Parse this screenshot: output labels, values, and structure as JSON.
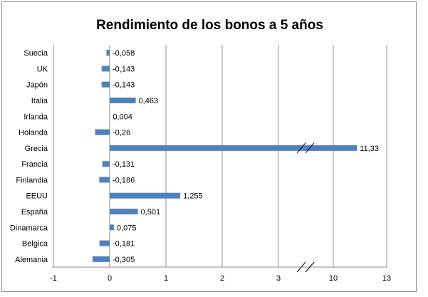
{
  "chart_data": {
    "type": "bar",
    "orientation": "horizontal",
    "title": "Rendimiento de los bonos a 5 años",
    "categories": [
      "Suecia",
      "UK",
      "Japón",
      "Italia",
      "Irlanda",
      "Holanda",
      "Grecia",
      "Francia",
      "Finlandia",
      "EEUU",
      "España",
      "Dinamarca",
      "Belgica",
      "Alemania"
    ],
    "values": [
      -0.058,
      -0.143,
      -0.143,
      0.463,
      0.004,
      -0.26,
      11.33,
      -0.131,
      -0.186,
      1.255,
      0.501,
      0.075,
      -0.181,
      -0.305
    ],
    "data_labels": [
      "-0,058",
      "-0,143",
      "-0,143",
      "0,463",
      "0,004",
      "-0,26",
      "11,33",
      "-0,131",
      "-0,186",
      "1,255",
      "0,501",
      "0,075",
      "-0,181",
      "-0,305"
    ],
    "x_ticks": [
      "-1",
      "0",
      "1",
      "2",
      "3",
      "10",
      "13"
    ],
    "axis_break": "between 3 and 10",
    "xlabel": "",
    "ylabel": "",
    "grid": "vertical",
    "bar_color": "#4F81BD"
  }
}
